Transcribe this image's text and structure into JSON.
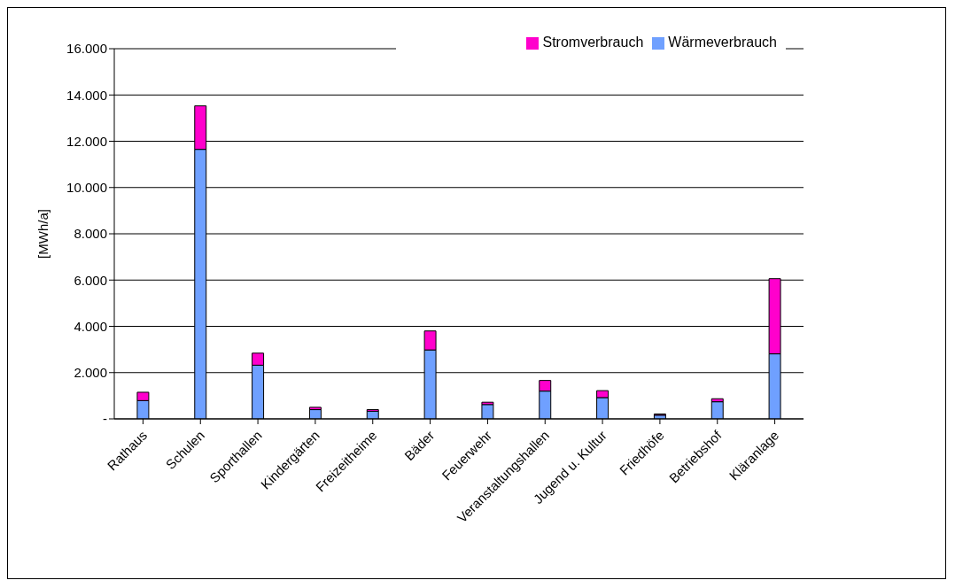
{
  "chart_data": {
    "type": "bar",
    "stacked": true,
    "ylabel": "[MWh/a]",
    "categories": [
      "Rathaus",
      "Schulen",
      "Sporthallen",
      "Kindergärten",
      "Freizeitheime",
      "Bäder",
      "Feuerwehr",
      "Veranstaltungshallen",
      "Jugend u. Kultur",
      "Friedhöfe",
      "Betriebshof",
      "Kläranlage"
    ],
    "series": [
      {
        "name": "Wärmeverbrauch",
        "color": "#6fa0ff",
        "values": [
          790,
          11650,
          2320,
          400,
          330,
          2980,
          620,
          1200,
          920,
          160,
          740,
          2810
        ]
      },
      {
        "name": "Stromverbrauch",
        "color": "#ff00cc",
        "values": [
          360,
          1880,
          520,
          100,
          70,
          820,
          100,
          460,
          300,
          50,
          130,
          3250
        ]
      }
    ],
    "ylim": [
      0,
      16000
    ],
    "yticks": [
      {
        "value": 0,
        "label": "-"
      },
      {
        "value": 2000,
        "label": "2.000"
      },
      {
        "value": 4000,
        "label": "4.000"
      },
      {
        "value": 6000,
        "label": "6.000"
      },
      {
        "value": 8000,
        "label": "8.000"
      },
      {
        "value": 10000,
        "label": "10.000"
      },
      {
        "value": 12000,
        "label": "12.000"
      },
      {
        "value": 14000,
        "label": "14.000"
      },
      {
        "value": 16000,
        "label": "16.000"
      }
    ],
    "grid": "y",
    "legend": "top right"
  }
}
